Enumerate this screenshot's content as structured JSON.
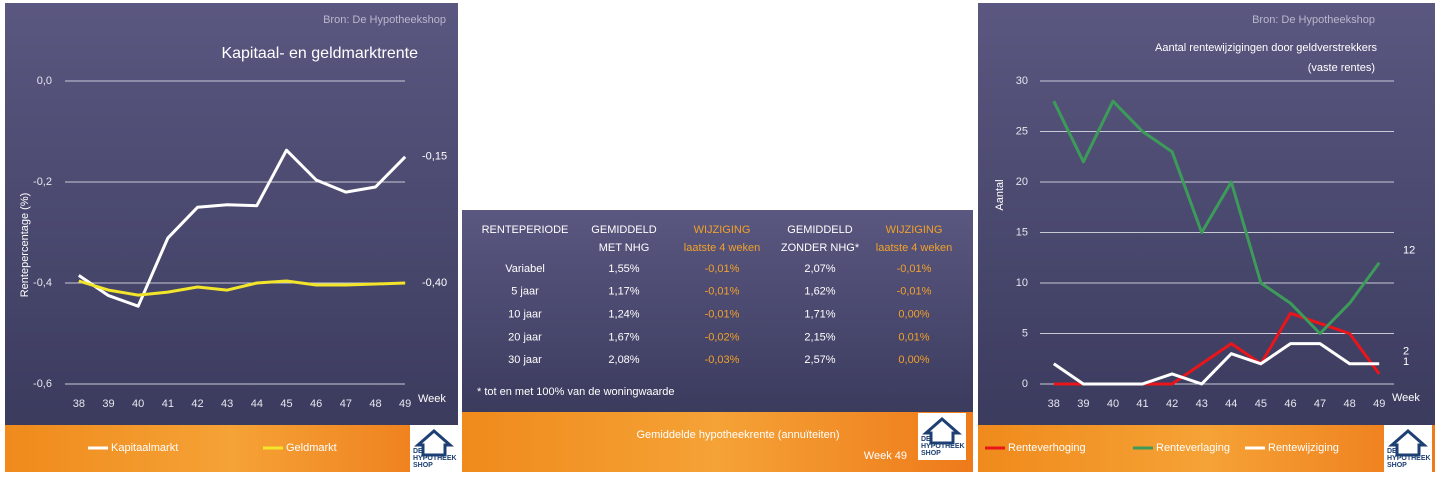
{
  "source": "Bron: De Hypotheekshop",
  "logo": [
    "DE",
    "HYPOTHEEK",
    "SHOP"
  ],
  "chart_data": [
    {
      "type": "line",
      "title": "Kapitaal- en geldmarktrente",
      "y_label": "Rentepercentage (%)",
      "x_label": "Week",
      "categories": [
        "38",
        "39",
        "40",
        "41",
        "42",
        "43",
        "44",
        "45",
        "46",
        "47",
        "48",
        "49"
      ],
      "ylim": [
        -0.6,
        0.0
      ],
      "yticks": [
        {
          "value": 0.0,
          "label": "0,0"
        },
        {
          "value": -0.2,
          "label": "-0,2"
        },
        {
          "value": -0.4,
          "label": "-0,4"
        },
        {
          "value": -0.6,
          "label": "-0,6"
        }
      ],
      "grid": true,
      "series": [
        {
          "name": "Kapitaalmarkt",
          "color": "#ffffff",
          "values": [
            -0.385,
            -0.425,
            -0.446,
            -0.311,
            -0.25,
            -0.245,
            -0.247,
            -0.137,
            -0.196,
            -0.22,
            -0.21,
            -0.15
          ],
          "value_labels": [
            null,
            null,
            null,
            null,
            null,
            null,
            null,
            null,
            null,
            null,
            null,
            "-0,15"
          ]
        },
        {
          "name": "Geldmarkt",
          "color": "#f2e52a",
          "values": [
            -0.396,
            -0.414,
            -0.424,
            -0.418,
            -0.408,
            -0.414,
            -0.4,
            -0.396,
            -0.404,
            -0.404,
            -0.402,
            -0.4
          ],
          "value_labels": [
            null,
            null,
            null,
            null,
            null,
            null,
            null,
            null,
            null,
            null,
            null,
            "-0,40"
          ]
        }
      ]
    },
    {
      "type": "line",
      "title": "Aantal rentewijzigingen door geldverstrekkers",
      "subtitle": "(vaste rentes)",
      "y_label": "Aantal",
      "x_label": "Week",
      "categories": [
        "38",
        "39",
        "40",
        "41",
        "42",
        "43",
        "44",
        "45",
        "46",
        "47",
        "48",
        "49"
      ],
      "ylim": [
        0,
        30
      ],
      "yticks": [
        0,
        5,
        10,
        15,
        20,
        25,
        30
      ],
      "grid": true,
      "series": [
        {
          "name": "Renteverhoging",
          "color": "#e8151b",
          "values": [
            0,
            0,
            0,
            0,
            0,
            2,
            4,
            2,
            7,
            6,
            5,
            1
          ]
        },
        {
          "name": "Renteverlaging",
          "color": "#3d9b5a",
          "values": [
            28,
            22,
            28,
            25,
            23,
            15,
            20,
            10,
            8,
            5,
            8,
            12
          ]
        },
        {
          "name": "Rentewijziging",
          "color": "#ffffff",
          "values": [
            2,
            0,
            0,
            0,
            1,
            0,
            3,
            2,
            4,
            4,
            2,
            2
          ]
        }
      ]
    }
  ],
  "table": {
    "header": [
      [
        "RENTEPERIODE"
      ],
      [
        "GEMIDDELD",
        "MET NHG"
      ],
      [
        "WIJZIGING",
        "laatste 4 weken"
      ],
      [
        "GEMIDDELD",
        "ZONDER NHG*"
      ],
      [
        "WIJZIGING",
        "laatste 4 weken"
      ]
    ],
    "rows": [
      [
        "Variabel",
        "1,55%",
        "-0,01%",
        "2,07%",
        "-0,01%"
      ],
      [
        "5 jaar",
        "1,17%",
        "-0,01%",
        "1,62%",
        "-0,01%"
      ],
      [
        "10 jaar",
        "1,24%",
        "-0,01%",
        "1,71%",
        "0,00%"
      ],
      [
        "20 jaar",
        "1,67%",
        "-0,02%",
        "2,15%",
        "0,01%"
      ],
      [
        "30 jaar",
        "2,08%",
        "-0,03%",
        "2,57%",
        "0,00%"
      ]
    ],
    "footnote": "* tot en met 100% van de woningwaarde",
    "title": "Gemiddelde hypotheekrente (annuïteiten)",
    "week": "Week 49"
  }
}
